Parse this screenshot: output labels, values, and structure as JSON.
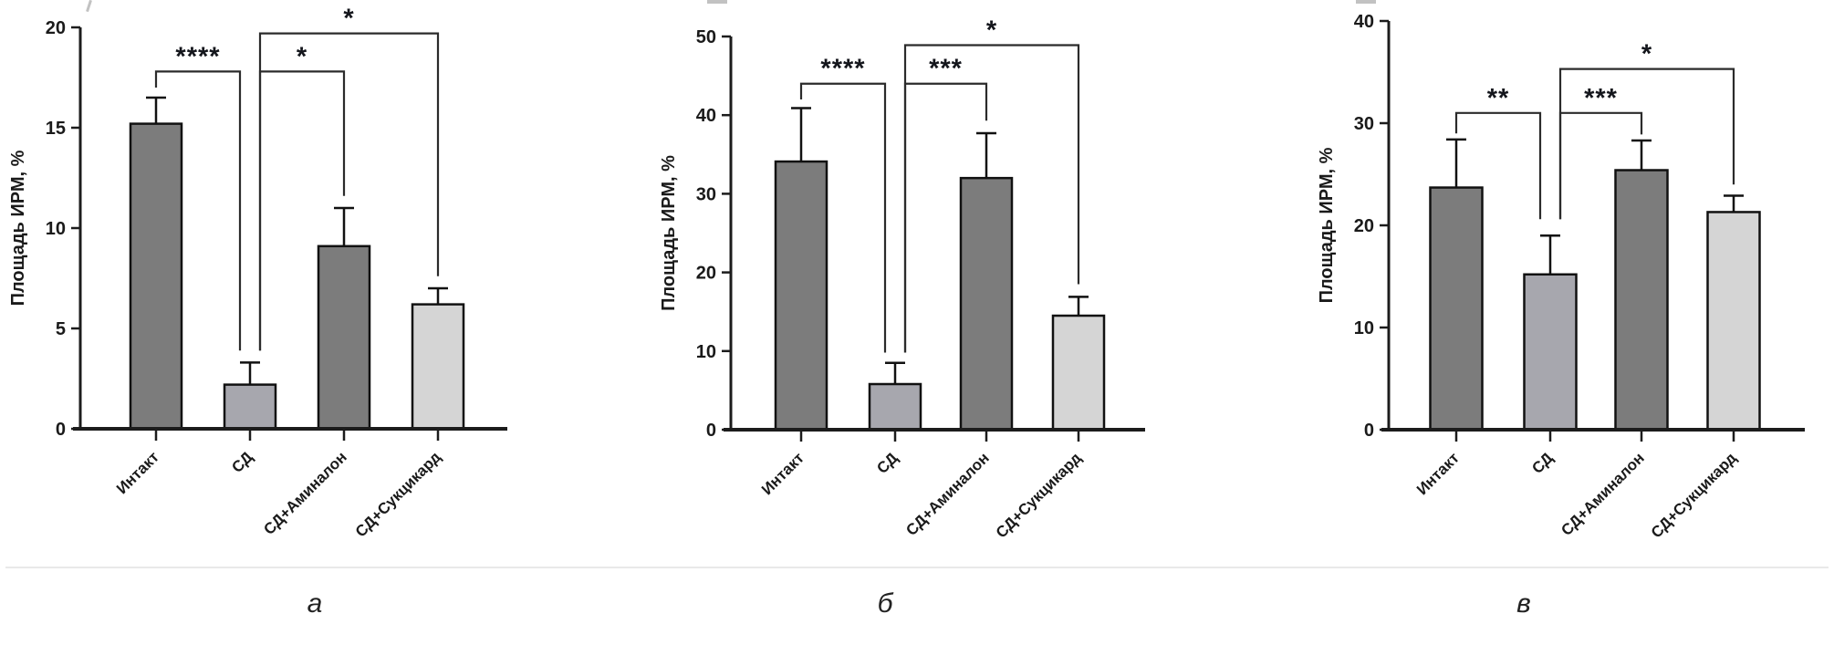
{
  "figure": {
    "background": "#ffffff",
    "divider_color": "#e9e9e9",
    "text_color": "#1a1a1a",
    "axis_color": "#1c1c1c",
    "bracket_color": "#2b2b2b",
    "sig_color": "#14161c",
    "captions": [
      "а",
      "б",
      "в"
    ]
  },
  "chart_data": [
    {
      "type": "bar",
      "title": "",
      "caption": "а",
      "ylabel": "Площадь ИРМ, %",
      "xlabel": "",
      "categories": [
        "Интакт",
        "СД",
        "СД+Аминалон",
        "СД+Сукцикард"
      ],
      "values": [
        15.2,
        2.2,
        9.1,
        6.2
      ],
      "errors_plus": [
        1.3,
        1.1,
        1.9,
        0.8
      ],
      "ylim": [
        0,
        20
      ],
      "yticks": [
        0,
        5,
        10,
        15,
        20
      ],
      "grid": false,
      "legend": "none",
      "bar_colors": [
        "#7c7c7c",
        "#a7a7ae",
        "#7c7c7c",
        "#d5d5d5"
      ],
      "significance": [
        {
          "group_a": "Интакт",
          "group_b": "СД",
          "label": "****",
          "level": 17.8,
          "drop_a": 17.0,
          "drop_b": 3.9,
          "off_a": 0,
          "off_b": -11
        },
        {
          "group_a": "СД",
          "group_b": "СД+Аминалон",
          "label": "*",
          "level": 17.8,
          "drop_a": 3.9,
          "drop_b": 11.6,
          "off_a": 11,
          "off_b": 0
        },
        {
          "group_a": "СД",
          "group_b": "СД+Сукцикард",
          "label": "*",
          "level": 19.7,
          "drop_a": 3.9,
          "drop_b": 7.6,
          "off_a": 11,
          "off_b": 0
        }
      ]
    },
    {
      "type": "bar",
      "title": "",
      "caption": "б",
      "ylabel": "Площадь ИРМ, %",
      "xlabel": "",
      "categories": [
        "Интакт",
        "СД",
        "СД+Аминалон",
        "СД+Сукцикард"
      ],
      "values": [
        34.1,
        5.8,
        32.0,
        14.5
      ],
      "errors_plus": [
        6.8,
        2.7,
        5.7,
        2.4
      ],
      "ylim": [
        0,
        50
      ],
      "yticks": [
        0,
        10,
        20,
        30,
        40,
        50
      ],
      "grid": false,
      "legend": "none",
      "bar_colors": [
        "#7c7c7c",
        "#a7a7ae",
        "#7c7c7c",
        "#d5d5d5"
      ],
      "significance": [
        {
          "group_a": "Интакт",
          "group_b": "СД",
          "label": "****",
          "level": 44.0,
          "drop_a": 42.0,
          "drop_b": 9.8,
          "off_a": 0,
          "off_b": -11
        },
        {
          "group_a": "СД",
          "group_b": "СД+Аминалон",
          "label": "***",
          "level": 44.0,
          "drop_a": 9.8,
          "drop_b": 39.3,
          "off_a": 11,
          "off_b": 0
        },
        {
          "group_a": "СД",
          "group_b": "СД+Сукцикард",
          "label": "*",
          "level": 48.9,
          "drop_a": 9.8,
          "drop_b": 18.5,
          "off_a": 11,
          "off_b": 0
        }
      ]
    },
    {
      "type": "bar",
      "title": "",
      "caption": "в",
      "ylabel": "Площадь ИРМ, %",
      "xlabel": "",
      "categories": [
        "Интакт",
        "СД",
        "СД+Аминалон",
        "СД+Сукцикард"
      ],
      "values": [
        23.7,
        15.2,
        25.4,
        21.3
      ],
      "errors_plus": [
        4.7,
        3.8,
        2.9,
        1.6
      ],
      "ylim": [
        0,
        40
      ],
      "yticks": [
        0,
        10,
        20,
        30,
        40
      ],
      "grid": false,
      "legend": "none",
      "bar_colors": [
        "#7c7c7c",
        "#a7a7ae",
        "#7c7c7c",
        "#d5d5d5"
      ],
      "significance": [
        {
          "group_a": "Интакт",
          "group_b": "СД",
          "label": "**",
          "level": 31.0,
          "drop_a": 29.0,
          "drop_b": 20.6,
          "off_a": 0,
          "off_b": -11
        },
        {
          "group_a": "СД",
          "group_b": "СД+Аминалон",
          "label": "***",
          "level": 31.0,
          "drop_a": 20.6,
          "drop_b": 28.9,
          "off_a": 11,
          "off_b": 0
        },
        {
          "group_a": "СД",
          "group_b": "СД+Сукцикард",
          "label": "*",
          "level": 35.3,
          "drop_a": 20.6,
          "drop_b": 24.0,
          "off_a": 11,
          "off_b": 0
        }
      ]
    }
  ]
}
